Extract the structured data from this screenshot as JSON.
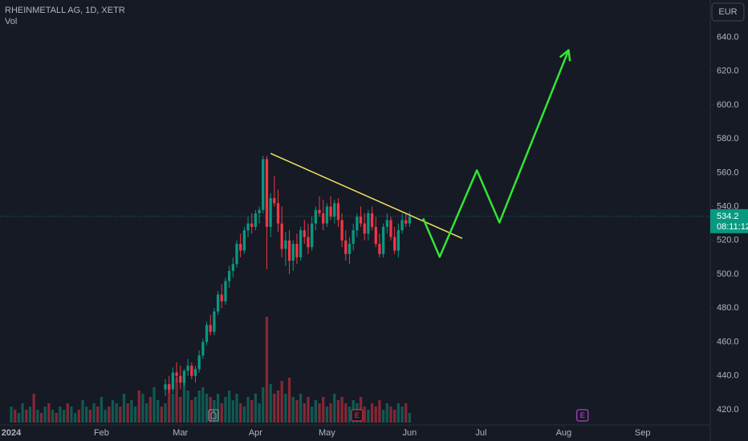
{
  "chart_data": {
    "type": "candlestick",
    "title": "RHEINMETALL AG, 1D, XETR",
    "volume_label": "Vol",
    "currency": "EUR",
    "countdown": "08:11:12",
    "up_color": "#089981",
    "down_color": "#f23645",
    "grid": false,
    "xlim": [
      -3,
      186
    ],
    "ylim": [
      411,
      662
    ],
    "yticks": [
      {
        "value": 420,
        "label": "420.0"
      },
      {
        "value": 440,
        "label": "440.0"
      },
      {
        "value": 460,
        "label": "460.0"
      },
      {
        "value": 480,
        "label": "480.0"
      },
      {
        "value": 500,
        "label": "500.0"
      },
      {
        "value": 520,
        "label": "520.0"
      },
      {
        "value": 540,
        "label": "540.0"
      },
      {
        "value": 560,
        "label": "560.0"
      },
      {
        "value": 580,
        "label": "580.0"
      },
      {
        "value": 600,
        "label": "600.0"
      },
      {
        "value": 620,
        "label": "620.0"
      },
      {
        "value": 640,
        "label": "640.0"
      }
    ],
    "xticks": [
      {
        "value": 0,
        "label": "2024"
      },
      {
        "value": 24,
        "label": "Feb"
      },
      {
        "value": 45,
        "label": "Mar"
      },
      {
        "value": 65,
        "label": "Apr"
      },
      {
        "value": 84,
        "label": "May"
      },
      {
        "value": 106,
        "label": "Jun"
      },
      {
        "value": 125,
        "label": "Jul"
      },
      {
        "value": 147,
        "label": "Aug"
      },
      {
        "value": 168,
        "label": "Sep"
      }
    ],
    "candles": [
      null,
      null,
      null,
      null,
      null,
      null,
      null,
      null,
      null,
      null,
      null,
      null,
      null,
      null,
      null,
      null,
      null,
      null,
      null,
      null,
      null,
      null,
      null,
      null,
      null,
      null,
      null,
      null,
      null,
      null,
      null,
      null,
      null,
      null,
      null,
      null,
      null,
      null,
      null,
      null,
      null,
      [
        432,
        438,
        428,
        435
      ],
      [
        435,
        440,
        430,
        432
      ],
      [
        432,
        445,
        430,
        442
      ],
      [
        442,
        448,
        436,
        440
      ],
      [
        440,
        446,
        432,
        436
      ],
      [
        436,
        444,
        434,
        443
      ],
      [
        443,
        450,
        440,
        446
      ],
      [
        446,
        448,
        438,
        440
      ],
      [
        440,
        446,
        436,
        444
      ],
      [
        444,
        455,
        442,
        452
      ],
      [
        452,
        462,
        450,
        460
      ],
      [
        460,
        472,
        458,
        470
      ],
      [
        470,
        476,
        464,
        466
      ],
      [
        466,
        480,
        464,
        478
      ],
      [
        478,
        490,
        476,
        488
      ],
      [
        488,
        494,
        480,
        484
      ],
      [
        484,
        498,
        482,
        496
      ],
      [
        496,
        505,
        492,
        502
      ],
      [
        502,
        510,
        498,
        506
      ],
      [
        506,
        520,
        504,
        518
      ],
      [
        518,
        524,
        510,
        514
      ],
      [
        514,
        528,
        512,
        526
      ],
      [
        526,
        534,
        522,
        530
      ],
      [
        530,
        536,
        524,
        528
      ],
      [
        528,
        538,
        526,
        536
      ],
      [
        536,
        540,
        530,
        538
      ],
      [
        538,
        570,
        536,
        568
      ],
      [
        568,
        570,
        503,
        528
      ],
      [
        528,
        548,
        522,
        545
      ],
      [
        545,
        558,
        540,
        542
      ],
      [
        542,
        550,
        525,
        530
      ],
      [
        530,
        540,
        510,
        515
      ],
      [
        515,
        525,
        505,
        520
      ],
      [
        520,
        526,
        500,
        508
      ],
      [
        508,
        520,
        502,
        518
      ],
      [
        518,
        524,
        506,
        510
      ],
      [
        510,
        528,
        508,
        526
      ],
      [
        526,
        532,
        518,
        522
      ],
      [
        522,
        530,
        512,
        516
      ],
      [
        516,
        534,
        514,
        530
      ],
      [
        530,
        540,
        526,
        538
      ],
      [
        538,
        546,
        534,
        536
      ],
      [
        536,
        544,
        526,
        530
      ],
      [
        530,
        542,
        528,
        540
      ],
      [
        540,
        546,
        532,
        534
      ],
      [
        534,
        544,
        530,
        542
      ],
      [
        542,
        545,
        528,
        532
      ],
      [
        532,
        536,
        516,
        520
      ],
      [
        520,
        526,
        508,
        512
      ],
      [
        512,
        522,
        506,
        518
      ],
      [
        518,
        530,
        514,
        526
      ],
      [
        526,
        536,
        522,
        534
      ],
      [
        534,
        540,
        528,
        530
      ],
      [
        530,
        536,
        520,
        524
      ],
      [
        524,
        538,
        520,
        536
      ],
      [
        536,
        540,
        526,
        528
      ],
      [
        528,
        534,
        516,
        518
      ],
      [
        518,
        524,
        510,
        512
      ],
      [
        512,
        530,
        510,
        528
      ],
      [
        528,
        536,
        524,
        532
      ],
      [
        532,
        534,
        520,
        522
      ],
      [
        522,
        528,
        512,
        514
      ],
      [
        514,
        530,
        510,
        526
      ],
      [
        526,
        536,
        524,
        532
      ],
      [
        532,
        536,
        528,
        530
      ],
      [
        530,
        537,
        528,
        534.2
      ]
    ],
    "volume": {
      "vlim": [
        0,
        4
      ],
      "values": [
        0.5,
        0.4,
        0.3,
        0.6,
        0.4,
        0.5,
        0.9,
        0.4,
        0.3,
        0.5,
        0.6,
        0.4,
        0.3,
        0.5,
        0.4,
        0.6,
        0.5,
        0.3,
        0.4,
        0.7,
        0.5,
        0.4,
        0.6,
        0.5,
        0.8,
        0.4,
        0.5,
        0.7,
        0.6,
        0.5,
        0.9,
        0.6,
        0.7,
        0.5,
        1.0,
        0.9,
        0.6,
        0.8,
        1.1,
        0.7,
        0.5,
        0.6,
        1.2,
        0.9,
        1.4,
        0.8,
        1.5,
        1.0,
        0.7,
        0.8,
        1.0,
        1.1,
        0.9,
        0.8,
        0.7,
        0.9,
        0.6,
        0.8,
        1.0,
        0.7,
        0.9,
        0.6,
        0.5,
        0.8,
        0.7,
        0.9,
        0.6,
        1.1,
        3.3,
        1.2,
        0.9,
        1.0,
        1.3,
        0.9,
        1.4,
        0.8,
        0.7,
        0.9,
        0.6,
        0.8,
        0.5,
        0.7,
        0.6,
        0.8,
        0.5,
        0.6,
        0.9,
        0.7,
        0.8,
        0.6,
        0.5,
        0.7,
        0.6,
        0.8,
        0.5,
        0.4,
        0.6,
        0.5,
        0.7,
        0.4,
        0.6,
        0.5,
        0.4,
        0.6,
        0.5,
        0.6,
        0.3
      ],
      "direction": [
        "up",
        "down",
        "up",
        "up",
        "down",
        "up",
        "down",
        "up",
        "down",
        "up",
        "down",
        "up",
        "down",
        "up",
        "up",
        "down",
        "up",
        "up",
        "down",
        "up",
        "up",
        "down",
        "up",
        "down",
        "up",
        "up",
        "down",
        "up",
        "up",
        "down",
        "up",
        "down",
        "up",
        "up",
        "down",
        "up",
        "up",
        "down",
        "up",
        "up",
        "down",
        "up",
        "down",
        "up",
        "down",
        "down",
        "up",
        "up",
        "down",
        "up",
        "up",
        "up",
        "up",
        "down",
        "up",
        "up",
        "down",
        "up",
        "up",
        "up",
        "up",
        "down",
        "up",
        "up",
        "down",
        "up",
        "up",
        "up",
        "down",
        "up",
        "down",
        "down",
        "down",
        "up",
        "down",
        "up",
        "down",
        "up",
        "down",
        "down",
        "up",
        "up",
        "down",
        "down",
        "up",
        "down",
        "up",
        "down",
        "down",
        "down",
        "up",
        "up",
        "up",
        "down",
        "down",
        "up",
        "down",
        "down",
        "down",
        "up",
        "up",
        "down",
        "down",
        "up",
        "up",
        "down",
        "up"
      ]
    },
    "trendline": {
      "x": [
        69,
        120
      ],
      "y": [
        571.4,
        521.2
      ],
      "color": "#f5e35a"
    },
    "projection": {
      "x": [
        109.6,
        114,
        123.9,
        129.9,
        148.3
      ],
      "y": [
        533,
        510.3,
        561.4,
        530.6,
        632.4
      ],
      "color": "#33e533"
    },
    "events": [
      {
        "x": 92,
        "label": "E",
        "color": "#f23645"
      },
      {
        "x": 152,
        "label": "E",
        "color": "#d24bf0"
      }
    ]
  }
}
